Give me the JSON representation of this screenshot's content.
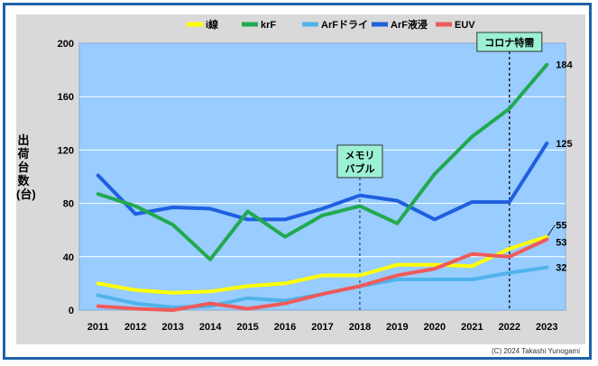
{
  "chart_data": {
    "type": "line",
    "title": "",
    "xlabel": "",
    "ylabel": "出荷台数(台)",
    "ylim": [
      0,
      200
    ],
    "yticks": [
      0,
      40,
      80,
      120,
      160,
      200
    ],
    "grid": true,
    "legend_position": "top",
    "categories": [
      "2011",
      "2012",
      "2013",
      "2014",
      "2015",
      "2016",
      "2017",
      "2018",
      "2019",
      "2020",
      "2021",
      "2022",
      "2023"
    ],
    "series": [
      {
        "name": "i線",
        "color": "#ffff00",
        "values": [
          20,
          15,
          13,
          14,
          18,
          20,
          26,
          26,
          34,
          34,
          33,
          46,
          55
        ],
        "end_label": "55"
      },
      {
        "name": "krF",
        "color": "#22a94f",
        "values": [
          87,
          78,
          64,
          38,
          74,
          55,
          71,
          78,
          65,
          102,
          130,
          151,
          184
        ],
        "end_label": "184"
      },
      {
        "name": "ArFドライ",
        "color": "#4fb3ea",
        "values": [
          11,
          5,
          2,
          3,
          9,
          7,
          12,
          18,
          23,
          23,
          23,
          28,
          32
        ],
        "end_label": "32"
      },
      {
        "name": "ArF液浸",
        "color": "#1f5fe0",
        "values": [
          101,
          72,
          77,
          76,
          68,
          68,
          76,
          86,
          82,
          68,
          81,
          81,
          125
        ],
        "end_label": "125"
      },
      {
        "name": "EUV",
        "color": "#f05a5a",
        "values": [
          3,
          1,
          0,
          5,
          1,
          5,
          12,
          18,
          26,
          31,
          42,
          40,
          53
        ],
        "end_label": "53"
      }
    ],
    "annotations": [
      {
        "label": "メモリ\nバブル",
        "x": "2018"
      },
      {
        "label": "コロナ特需",
        "x": "2022"
      }
    ]
  },
  "credit": "(C) 2024 Takashi Yunogami"
}
